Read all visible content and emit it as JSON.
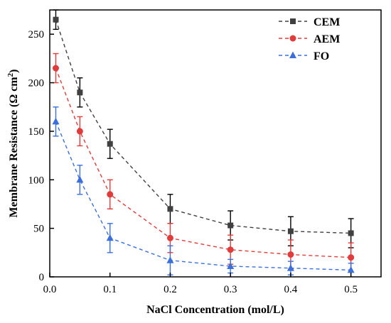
{
  "chart_data": {
    "type": "line",
    "xlabel": "NaCl Concentration (mol/L)",
    "ylabel": "Membrane Resistance (Ω cm²)",
    "ylabel_parts": [
      "Membrane Resistance (Ω cm",
      "2",
      ")"
    ],
    "xlim": [
      0.0,
      0.55
    ],
    "ylim": [
      0,
      275
    ],
    "xticks": [
      0.0,
      0.1,
      0.2,
      0.3,
      0.4,
      0.5
    ],
    "xtick_labels": [
      "0.0",
      "0.1",
      "0.2",
      "0.3",
      "0.4",
      "0.5"
    ],
    "yticks": [
      0,
      50,
      100,
      150,
      200,
      250
    ],
    "ytick_labels": [
      "0",
      "50",
      "100",
      "150",
      "200",
      "250"
    ],
    "grid": false,
    "legend_position": "top-right",
    "x": [
      0.01,
      0.05,
      0.1,
      0.2,
      0.3,
      0.4,
      0.5
    ],
    "series": [
      {
        "name": "CEM",
        "color": "#404040",
        "error_color": "#000000",
        "marker": "square",
        "values": [
          265,
          190,
          137,
          70,
          53,
          47,
          45
        ],
        "errors": [
          10,
          15,
          15,
          15,
          15,
          15,
          15
        ]
      },
      {
        "name": "AEM",
        "color": "#e03c3c",
        "error_color": "#e03c3c",
        "marker": "circle",
        "values": [
          215,
          150,
          85,
          40,
          28,
          23,
          20
        ],
        "errors": [
          15,
          15,
          15,
          15,
          15,
          15,
          15
        ]
      },
      {
        "name": "FO",
        "color": "#3a6fdc",
        "error_color": "#3a6fdc",
        "marker": "triangle",
        "values": [
          160,
          100,
          40,
          17,
          11,
          9,
          7
        ],
        "errors": [
          15,
          15,
          15,
          15,
          7,
          7,
          7
        ]
      }
    ]
  }
}
